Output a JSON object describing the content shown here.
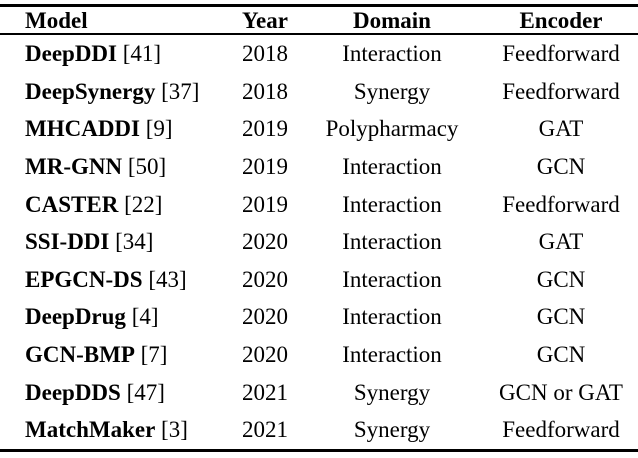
{
  "page": {
    "background_color": "#ffffff",
    "text_color": "#000000",
    "rule_color": "#000000"
  },
  "table": {
    "columns": [
      {
        "key": "model",
        "label": "Model"
      },
      {
        "key": "year",
        "label": "Year"
      },
      {
        "key": "domain",
        "label": "Domain"
      },
      {
        "key": "encoder",
        "label": "Encoder"
      }
    ],
    "rows": [
      {
        "model": "DeepDDI",
        "cite": "[41]",
        "year": "2018",
        "domain": "Interaction",
        "encoder": "Feedforward"
      },
      {
        "model": "DeepSynergy",
        "cite": "[37]",
        "year": "2018",
        "domain": "Synergy",
        "encoder": "Feedforward"
      },
      {
        "model": "MHCADDI",
        "cite": "[9]",
        "year": "2019",
        "domain": "Polypharmacy",
        "encoder": "GAT"
      },
      {
        "model": "MR-GNN",
        "cite": "[50]",
        "year": "2019",
        "domain": "Interaction",
        "encoder": "GCN"
      },
      {
        "model": "CASTER",
        "cite": "[22]",
        "year": "2019",
        "domain": "Interaction",
        "encoder": "Feedforward"
      },
      {
        "model": "SSI-DDI",
        "cite": "[34]",
        "year": "2020",
        "domain": "Interaction",
        "encoder": "GAT"
      },
      {
        "model": "EPGCN-DS",
        "cite": "[43]",
        "year": "2020",
        "domain": "Interaction",
        "encoder": "GCN"
      },
      {
        "model": "DeepDrug",
        "cite": "[4]",
        "year": "2020",
        "domain": "Interaction",
        "encoder": "GCN"
      },
      {
        "model": "GCN-BMP",
        "cite": "[7]",
        "year": "2020",
        "domain": "Interaction",
        "encoder": "GCN"
      },
      {
        "model": "DeepDDS",
        "cite": "[47]",
        "year": "2021",
        "domain": "Synergy",
        "encoder": "GCN or GAT"
      },
      {
        "model": "MatchMaker",
        "cite": "[3]",
        "year": "2021",
        "domain": "Synergy",
        "encoder": "Feedforward"
      }
    ]
  }
}
